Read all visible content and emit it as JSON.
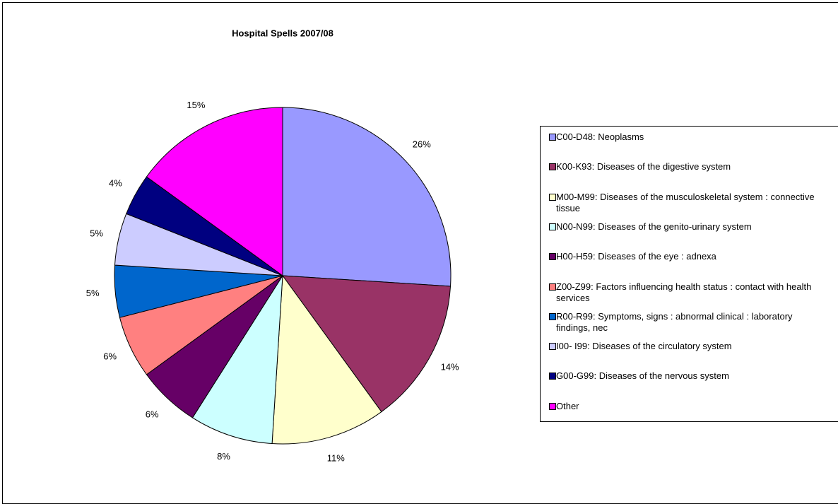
{
  "chart_data": {
    "type": "pie",
    "title": "Hospital Spells 2007/08",
    "categories": [
      "C00-D48: Neoplasms",
      "K00-K93: Diseases of the digestive system",
      "M00-M99: Diseases of the musculoskeletal system : connective tissue",
      "N00-N99: Diseases of the genito-urinary system",
      "H00-H59: Diseases of the eye : adnexa",
      "Z00-Z99: Factors influencing health status : contact with health services",
      "R00-R99: Symptoms, signs : abnormal clinical : laboratory findings, nec",
      "I00- I99: Diseases of the circulatory system",
      "G00-G99: Diseases of the nervous system",
      "Other"
    ],
    "values": [
      26,
      14,
      11,
      8,
      6,
      6,
      5,
      5,
      4,
      15
    ],
    "value_labels": [
      "26%",
      "14%",
      "11%",
      "8%",
      "6%",
      "6%",
      "5%",
      "5%",
      "4%",
      "15%"
    ],
    "colors": [
      "#9999ff",
      "#993366",
      "#ffffcc",
      "#ccffff",
      "#660066",
      "#ff8080",
      "#0066cc",
      "#ccccff",
      "#000080",
      "#ff00ff"
    ],
    "legend": "right"
  }
}
